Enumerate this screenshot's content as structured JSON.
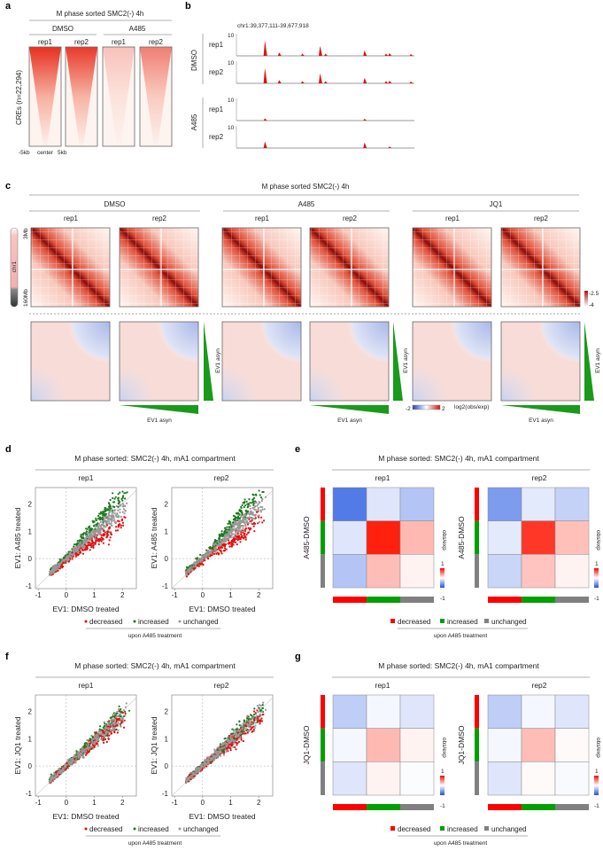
{
  "panel_letters": {
    "a": "a",
    "b": "b",
    "c": "c",
    "d": "d",
    "e": "e",
    "f": "f",
    "g": "g"
  },
  "a": {
    "title": "M phase sorted SMC2(-) 4h",
    "groups": [
      "DMSO",
      "A485"
    ],
    "reps": [
      "rep1",
      "rep2",
      "rep1",
      "rep2"
    ],
    "ylabel": "CREs (n=22,294)",
    "xticks": [
      "-5kb",
      "center",
      "5kb"
    ],
    "intensity": [
      1.0,
      0.95,
      0.25,
      0.6
    ]
  },
  "b": {
    "locus": "chr1:39,377,111-39,677,918",
    "groups": [
      "DMSO",
      "A485"
    ],
    "tracks": [
      {
        "label": "rep1",
        "scale": "10",
        "peaks": [
          [
            0.16,
            7
          ],
          [
            0.24,
            1.5
          ],
          [
            0.37,
            1
          ],
          [
            0.47,
            4.5
          ],
          [
            0.5,
            1
          ],
          [
            0.72,
            2.5
          ],
          [
            0.84,
            1
          ],
          [
            0.86,
            1.2
          ],
          [
            0.98,
            0.8
          ]
        ]
      },
      {
        "label": "rep2",
        "scale": "10",
        "peaks": [
          [
            0.16,
            7
          ],
          [
            0.24,
            1.5
          ],
          [
            0.37,
            1
          ],
          [
            0.47,
            4.5
          ],
          [
            0.5,
            1
          ],
          [
            0.72,
            2.5
          ],
          [
            0.84,
            1
          ],
          [
            0.86,
            1.2
          ],
          [
            0.98,
            0.8
          ]
        ]
      },
      {
        "label": "rep1",
        "scale": "10",
        "peaks": [
          [
            0.16,
            1
          ],
          [
            0.72,
            0.8
          ]
        ]
      },
      {
        "label": "rep2",
        "scale": "10",
        "peaks": [
          [
            0.16,
            3
          ],
          [
            0.72,
            2.5
          ],
          [
            0.86,
            0.7
          ]
        ]
      }
    ]
  },
  "c": {
    "title": "M phase sorted SMC2(-) 4h",
    "groups": [
      "DMSO",
      "A485",
      "JQ1"
    ],
    "reps": [
      "rep1",
      "rep2",
      "rep1",
      "rep2",
      "rep1",
      "rep2"
    ],
    "chrom": {
      "name": "chr1",
      "start": "3Mb",
      "end": "160Mb"
    },
    "hic_colorbar": [
      "-2.5",
      "-4"
    ],
    "ev1_label": "EV1 asyn",
    "ev1_colorbar": {
      "min": "-2",
      "max": "2",
      "label": "log2(obs/exp)"
    }
  },
  "scatter_legend": {
    "items": [
      "decreased",
      "increased",
      "unchanged"
    ],
    "colors": [
      "#e01010",
      "#1e7a1e",
      "#999999"
    ],
    "caption": "upon A485 treatment"
  },
  "heat_legend": {
    "items": [
      "decreased",
      "increased",
      "unchanged"
    ],
    "colors": [
      "#ff0000",
      "#00a000",
      "#808080"
    ],
    "caption": "upon A485 treatment"
  },
  "chart_data": [
    {
      "panel": "d",
      "type": "scatter",
      "title": "M phase sorted: SMC2(-) 4h, mA1 compartment",
      "subplots": [
        "rep1",
        "rep2"
      ],
      "xlabel": "EV1: DMSO treated",
      "ylabel": "EV1: A485 treated",
      "xlim": [
        -1.1,
        2.5
      ],
      "ylim": [
        -1.1,
        2.6
      ],
      "xticks": [
        "-1",
        "0",
        "1",
        "2"
      ],
      "yticks": [
        "-1",
        "0",
        "1",
        "2"
      ],
      "series": [
        {
          "name": "decreased",
          "offset": -0.45
        },
        {
          "name": "increased",
          "offset": 0.45
        },
        {
          "name": "unchanged",
          "offset": 0
        }
      ]
    },
    {
      "panel": "e",
      "type": "heatmap",
      "title": "M phase sorted: SMC2(-) 4h, mA1 compartment",
      "subplots": [
        "rep1",
        "rep2"
      ],
      "ylabel": "A485-DMSO",
      "colorbar_label": "obs/exp",
      "colorbar_range": [
        "1",
        "-1"
      ],
      "categories": [
        "decreased",
        "increased",
        "unchanged"
      ],
      "values": [
        [
          [
            -0.8,
            -0.15,
            -0.35
          ],
          [
            -0.15,
            0.95,
            0.3
          ],
          [
            -0.35,
            0.28,
            0.05
          ]
        ],
        [
          [
            -0.6,
            -0.13,
            -0.27
          ],
          [
            -0.13,
            0.85,
            0.27
          ],
          [
            -0.25,
            0.25,
            0.05
          ]
        ]
      ]
    },
    {
      "panel": "f",
      "type": "scatter",
      "title": "M phase sorted: SMC2(-) 4h, mA1 compartment",
      "subplots": [
        "rep1",
        "rep2"
      ],
      "xlabel": "EV1: DMSO treated",
      "ylabel": "EV1: JQ1 treated",
      "xlim": [
        -1.1,
        2.5
      ],
      "ylim": [
        -1.1,
        2.6
      ],
      "xticks": [
        "-1",
        "0",
        "1",
        "2"
      ],
      "yticks": [
        "-1",
        "0",
        "1",
        "2"
      ],
      "series": [
        {
          "name": "decreased",
          "offset": -0.1
        },
        {
          "name": "increased",
          "offset": 0.1
        },
        {
          "name": "unchanged",
          "offset": 0
        }
      ]
    },
    {
      "panel": "g",
      "type": "heatmap",
      "title": "M phase sorted: SMC2(-) 4h, mA1 compartment",
      "subplots": [
        "rep1",
        "rep2"
      ],
      "ylabel": "JQ1-DMSO",
      "colorbar_label": "obs/exp",
      "colorbar_range": [
        "1",
        "-1"
      ],
      "categories": [
        "decreased",
        "increased",
        "unchanged"
      ],
      "values": [
        [
          [
            -0.3,
            -0.05,
            -0.15
          ],
          [
            -0.05,
            0.3,
            0.05
          ],
          [
            -0.15,
            0.05,
            -0.02
          ]
        ],
        [
          [
            -0.3,
            -0.05,
            -0.15
          ],
          [
            -0.05,
            0.28,
            0.02
          ],
          [
            -0.15,
            0.02,
            -0.03
          ]
        ]
      ]
    }
  ]
}
